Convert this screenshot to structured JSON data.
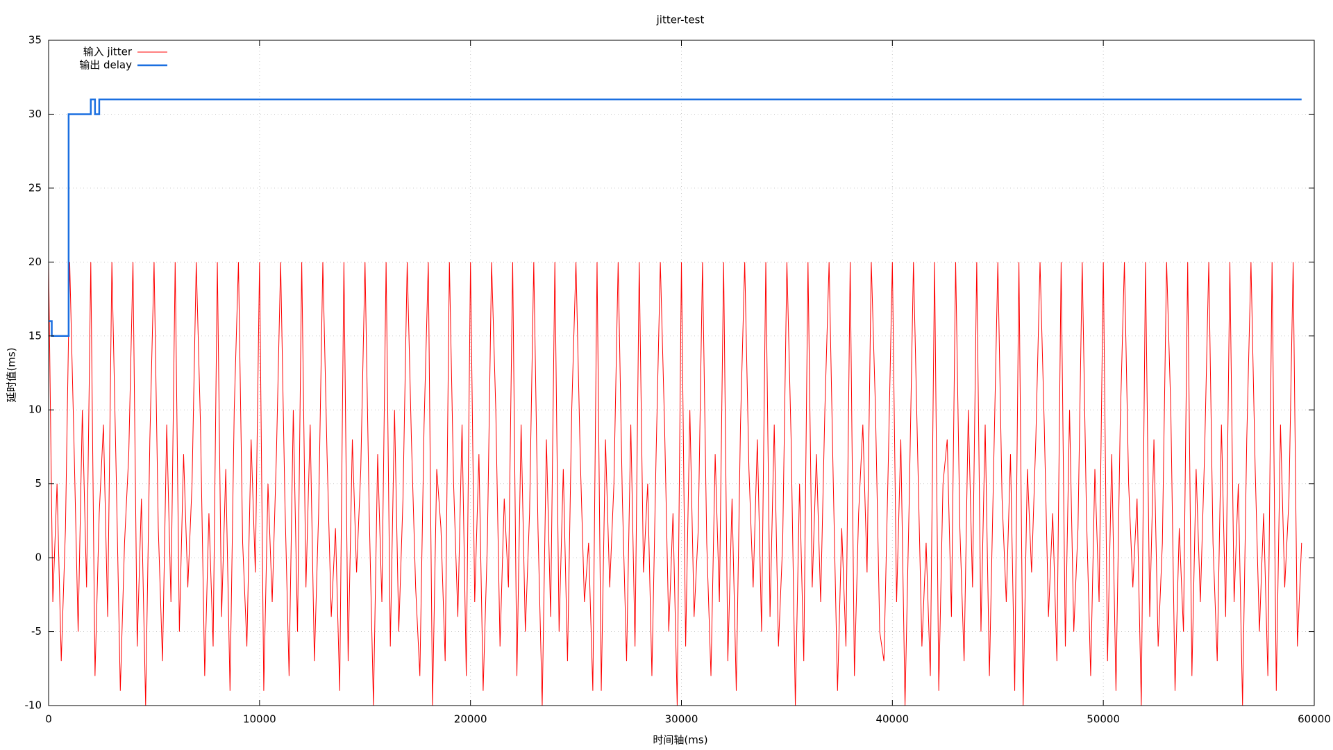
{
  "chart_data": {
    "type": "line",
    "title": "jitter-test",
    "x_label": "时间轴(ms)",
    "y_label": "延时值(ms)",
    "xlim": [
      0,
      60000
    ],
    "ylim": [
      -10,
      35
    ],
    "xticks": [
      0,
      10000,
      20000,
      30000,
      40000,
      50000,
      60000
    ],
    "yticks": [
      -10,
      -5,
      0,
      5,
      10,
      15,
      20,
      25,
      30,
      35
    ],
    "grid": true,
    "legend": "top-left",
    "series": [
      {
        "name": "输入 jitter",
        "color": "#ff0000",
        "width": 1,
        "x": [
          0,
          200,
          400,
          600,
          800,
          1000,
          1200,
          1400,
          1600,
          1800,
          2000,
          2200,
          2400,
          2600,
          2800,
          3000,
          3200,
          3400,
          3600,
          3800,
          4000,
          4200,
          4400,
          4600,
          4800,
          5000,
          5200,
          5400,
          5600,
          5800,
          6000,
          6200,
          6400,
          6600,
          6800,
          7000,
          7200,
          7400,
          7600,
          7800,
          8000,
          8200,
          8400,
          8600,
          8800,
          9000,
          9200,
          9400,
          9600,
          9800,
          10000,
          10200,
          10400,
          10600,
          10800,
          11000,
          11200,
          11400,
          11600,
          11800,
          12000,
          12200,
          12400,
          12600,
          12800,
          13000,
          13200,
          13400,
          13600,
          13800,
          14000,
          14200,
          14400,
          14600,
          14800,
          15000,
          15200,
          15400,
          15600,
          15800,
          16000,
          16200,
          16400,
          16600,
          16800,
          17000,
          17200,
          17400,
          17600,
          17800,
          18000,
          18200,
          18400,
          18600,
          18800,
          19000,
          19200,
          19400,
          19600,
          19800,
          20000,
          20200,
          20400,
          20600,
          20800,
          21000,
          21200,
          21400,
          21600,
          21800,
          22000,
          22200,
          22400,
          22600,
          22800,
          23000,
          23200,
          23400,
          23600,
          23800,
          24000,
          24200,
          24400,
          24600,
          24800,
          25000,
          25200,
          25400,
          25600,
          25800,
          26000,
          26200,
          26400,
          26600,
          26800,
          27000,
          27200,
          27400,
          27600,
          27800,
          28000,
          28200,
          28400,
          28600,
          28800,
          29000,
          29200,
          29400,
          29600,
          29800,
          30000,
          30200,
          30400,
          30600,
          30800,
          31000,
          31200,
          31400,
          31600,
          31800,
          32000,
          32200,
          32400,
          32600,
          32800,
          33000,
          33200,
          33400,
          33600,
          33800,
          34000,
          34200,
          34400,
          34600,
          34800,
          35000,
          35200,
          35400,
          35600,
          35800,
          36000,
          36200,
          36400,
          36600,
          36800,
          37000,
          37200,
          37400,
          37600,
          37800,
          38000,
          38200,
          38400,
          38600,
          38800,
          39000,
          39200,
          39400,
          39600,
          39800,
          40000,
          40200,
          40400,
          40600,
          40800,
          41000,
          41200,
          41400,
          41600,
          41800,
          42000,
          42200,
          42400,
          42600,
          42800,
          43000,
          43200,
          43400,
          43600,
          43800,
          44000,
          44200,
          44400,
          44600,
          44800,
          45000,
          45200,
          45400,
          45600,
          45800,
          46000,
          46200,
          46400,
          46600,
          46800,
          47000,
          47200,
          47400,
          47600,
          47800,
          48000,
          48200,
          48400,
          48600,
          48800,
          49000,
          49200,
          49400,
          49600,
          49800,
          50000,
          50200,
          50400,
          50600,
          50800,
          51000,
          51200,
          51400,
          51600,
          51800,
          52000,
          52200,
          52400,
          52600,
          52800,
          53000,
          53200,
          53400,
          53600,
          53800,
          54000,
          54200,
          54400,
          54600,
          54800,
          55000,
          55200,
          55400,
          55600,
          55800,
          56000,
          56200,
          56400,
          56600,
          56800,
          57000,
          57200,
          57400,
          57600,
          57800,
          58000,
          58200,
          58400,
          58600,
          58800,
          59000,
          59200,
          59400
        ],
        "values": [
          20,
          -3,
          5,
          -7,
          2,
          20,
          8,
          -5,
          10,
          -2,
          20,
          -8,
          3,
          9,
          -4,
          20,
          6,
          -9,
          1,
          7,
          20,
          -6,
          4,
          -10,
          8,
          20,
          2,
          -7,
          9,
          -3,
          20,
          -5,
          7,
          -2,
          5,
          20,
          9,
          -8,
          3,
          -6,
          20,
          -4,
          6,
          -9,
          10,
          20,
          1,
          -6,
          8,
          -1,
          20,
          -9,
          5,
          -3,
          7,
          20,
          4,
          -8,
          10,
          -5,
          20,
          -2,
          9,
          -7,
          3,
          20,
          7,
          -4,
          2,
          -9,
          20,
          -7,
          8,
          -1,
          6,
          20,
          3,
          -10,
          7,
          -3,
          20,
          -6,
          10,
          -5,
          4,
          20,
          8,
          -2,
          -8,
          9,
          20,
          -10,
          6,
          2,
          -7,
          20,
          5,
          -4,
          9,
          -8,
          20,
          -3,
          7,
          -9,
          1,
          20,
          10,
          -6,
          4,
          -2,
          20,
          -8,
          9,
          -5,
          3,
          20,
          2,
          -10,
          8,
          -4,
          20,
          -5,
          6,
          -7,
          10,
          20,
          7,
          -3,
          1,
          -9,
          20,
          -9,
          8,
          -2,
          5,
          20,
          4,
          -7,
          9,
          -6,
          20,
          -1,
          5,
          -8,
          7,
          20,
          9,
          -5,
          3,
          -10,
          20,
          -6,
          10,
          -4,
          2,
          20,
          1,
          -8,
          7,
          -3,
          20,
          -7,
          4,
          -9,
          9,
          20,
          6,
          -2,
          8,
          -5,
          20,
          -4,
          9,
          -6,
          1,
          20,
          8,
          -10,
          5,
          -7,
          20,
          -2,
          7,
          -3,
          10,
          20,
          5,
          -9,
          2,
          -6,
          20,
          -8,
          3,
          9,
          -1,
          20,
          10,
          -5,
          -7,
          6,
          20,
          -3,
          8,
          -10,
          4,
          20,
          7,
          -6,
          1,
          -8,
          20,
          -9,
          5,
          8,
          -4,
          20,
          2,
          -7,
          10,
          -2,
          20,
          -5,
          9,
          -8,
          6,
          20,
          4,
          -3,
          7,
          -9,
          20,
          -10,
          6,
          -1,
          8,
          20,
          9,
          -4,
          3,
          -7,
          20,
          -6,
          10,
          -5,
          2,
          20,
          3,
          -8,
          6,
          -3,
          20,
          -7,
          7,
          -9,
          9,
          20,
          5,
          -2,
          4,
          -10,
          20,
          -4,
          8,
          -6,
          1,
          20,
          10,
          -9,
          2,
          -5,
          20,
          -8,
          6,
          -3,
          7,
          20,
          1,
          -7,
          9,
          -4,
          20,
          -3,
          5,
          -10,
          8,
          20,
          6,
          -5,
          3,
          -8,
          20,
          -9,
          9,
          -2,
          4,
          20,
          -6,
          1
        ]
      },
      {
        "name": "输出 delay",
        "color": "#1a6fe0",
        "width": 2.5,
        "x": [
          0,
          150,
          150,
          950,
          950,
          2000,
          2000,
          2200,
          2200,
          2400,
          2400,
          59400
        ],
        "values": [
          16,
          16,
          15,
          15,
          30,
          30,
          31,
          31,
          30,
          30,
          31,
          31
        ]
      }
    ]
  }
}
